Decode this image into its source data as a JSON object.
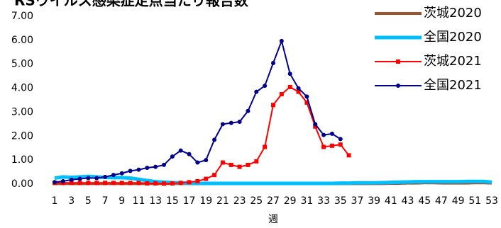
{
  "chart_data": {
    "type": "line",
    "title": "RSウイルス感染症定点当たり報告数",
    "xlabel": "週",
    "x": [
      1,
      2,
      3,
      4,
      5,
      6,
      7,
      8,
      9,
      10,
      11,
      12,
      13,
      14,
      15,
      16,
      17,
      18,
      19,
      20,
      21,
      22,
      23,
      24,
      25,
      26,
      27,
      28,
      29,
      30,
      31,
      32,
      33,
      34,
      35,
      36,
      37,
      38,
      39,
      40,
      41,
      42,
      43,
      44,
      45,
      46,
      47,
      48,
      49,
      50,
      51,
      52,
      53
    ],
    "xlim": [
      1,
      53
    ],
    "xticks": [
      1,
      3,
      5,
      7,
      9,
      11,
      13,
      15,
      17,
      19,
      21,
      23,
      25,
      27,
      29,
      31,
      33,
      35,
      37,
      39,
      41,
      43,
      45,
      47,
      49,
      51,
      53
    ],
    "ylim": [
      0,
      7
    ],
    "yticks": [
      {
        "value": 0,
        "label": "0.00"
      },
      {
        "value": 1,
        "label": "1.00"
      },
      {
        "value": 2,
        "label": "2.00"
      },
      {
        "value": 3,
        "label": "3.00"
      },
      {
        "value": 4,
        "label": "4.00"
      },
      {
        "value": 5,
        "label": "5.00"
      },
      {
        "value": 6,
        "label": "6.00"
      },
      {
        "value": 7,
        "label": "7.00"
      }
    ],
    "legend": "top-right",
    "series": [
      {
        "name": "茨城2020",
        "color": "#a0522d",
        "width": 4,
        "marker": "none",
        "values": [
          0.02,
          0.02,
          0.02,
          0.02,
          0.02,
          0.02,
          0.02,
          0.02,
          0.02,
          0.02,
          0.02,
          0.02,
          0.02,
          0.02,
          0.02,
          0.02,
          0.02,
          0.02,
          0.02,
          0.02,
          0.02,
          0.02,
          0.02,
          0.02,
          0.02,
          0.02,
          0.02,
          0.02,
          0.02,
          0.02,
          0.02,
          0.02,
          0.02,
          0.02,
          0.02,
          0.02,
          0.02,
          0.02,
          0.02,
          0.02,
          0.03,
          0.03,
          0.04,
          0.04,
          0.05,
          0.05,
          0.04,
          0.04,
          0.04,
          0.04,
          0.05,
          0.05,
          0.04
        ]
      },
      {
        "name": "全国2020",
        "color": "#00bfff",
        "width": 5,
        "marker": "none",
        "values": [
          0.25,
          0.3,
          0.28,
          0.3,
          0.32,
          0.3,
          0.28,
          0.27,
          0.27,
          0.25,
          0.2,
          0.15,
          0.1,
          0.08,
          0.06,
          0.05,
          0.04,
          0.03,
          0.03,
          0.03,
          0.03,
          0.03,
          0.03,
          0.03,
          0.03,
          0.03,
          0.03,
          0.03,
          0.03,
          0.03,
          0.03,
          0.03,
          0.03,
          0.03,
          0.04,
          0.04,
          0.05,
          0.05,
          0.05,
          0.06,
          0.07,
          0.08,
          0.09,
          0.1,
          0.1,
          0.1,
          0.1,
          0.1,
          0.1,
          0.11,
          0.11,
          0.11,
          0.08
        ]
      },
      {
        "name": "茨城2021",
        "color": "#ff0000",
        "width": 2,
        "marker": "square",
        "values": [
          0.05,
          0.05,
          0.05,
          0.05,
          0.05,
          0.05,
          0.05,
          0.05,
          0.05,
          0.05,
          0.05,
          0.03,
          0.03,
          0.02,
          0.03,
          0.05,
          0.08,
          0.12,
          0.22,
          0.38,
          0.9,
          0.8,
          0.72,
          0.8,
          0.95,
          1.55,
          3.3,
          3.75,
          4.05,
          3.85,
          3.4,
          2.4,
          1.55,
          1.6,
          1.65,
          1.2,
          null,
          null,
          null,
          null,
          null,
          null,
          null,
          null,
          null,
          null,
          null,
          null,
          null,
          null,
          null,
          null,
          null
        ]
      },
      {
        "name": "全国2021",
        "color": "#00008b",
        "width": 2,
        "marker": "circle",
        "values": [
          0.08,
          0.12,
          0.18,
          0.22,
          0.25,
          0.25,
          0.3,
          0.38,
          0.45,
          0.55,
          0.6,
          0.68,
          0.72,
          0.8,
          1.15,
          1.4,
          1.25,
          0.9,
          1.0,
          1.85,
          2.5,
          2.55,
          2.6,
          3.05,
          3.85,
          4.1,
          5.05,
          5.97,
          4.6,
          4.0,
          3.65,
          2.5,
          2.05,
          2.1,
          1.88,
          null,
          null,
          null,
          null,
          null,
          null,
          null,
          null,
          null,
          null,
          null,
          null,
          null,
          null,
          null,
          null,
          null,
          null
        ]
      }
    ]
  }
}
